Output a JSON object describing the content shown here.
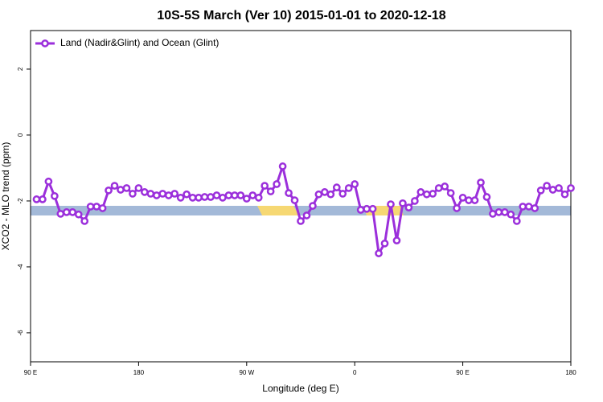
{
  "chart_data": {
    "type": "line",
    "title": "10S-5S March (Ver 10)   2015-01-01 to 2020-12-18",
    "xlabel": "Longitude (deg E)",
    "ylabel": "XCO2 - MLO trend (ppm)",
    "xlim": [
      90,
      540
    ],
    "ylim": [
      -6.88,
      3.17
    ],
    "xticks": [
      {
        "value": 90,
        "label": "90 E"
      },
      180,
      {
        "value": 270,
        "label": "90 W"
      },
      {
        "value": 360,
        "label": "0"
      },
      {
        "value": 450,
        "label": "90 E"
      },
      {
        "value": 540,
        "label": "180"
      }
    ],
    "yticks": [
      2,
      0,
      -2,
      -4,
      -6
    ],
    "legend": "upper left",
    "x": [
      95,
      100,
      105,
      110,
      115,
      120,
      125,
      130,
      135,
      140,
      145,
      150,
      155,
      160,
      165,
      170,
      175,
      180,
      185,
      190,
      195,
      200,
      205,
      210,
      215,
      220,
      225,
      230,
      235,
      240,
      245,
      250,
      255,
      260,
      265,
      270,
      275,
      280,
      285,
      290,
      295,
      300,
      305,
      310,
      315,
      320,
      325,
      330,
      335,
      340,
      345,
      350,
      355,
      360,
      365,
      370,
      375,
      380,
      385,
      390,
      395,
      400,
      405,
      410,
      415,
      420,
      425,
      430,
      435,
      440,
      445,
      450,
      455,
      460,
      465,
      470,
      475,
      480,
      485,
      490,
      495,
      500,
      505,
      510,
      515,
      520,
      525,
      530,
      535,
      540
    ],
    "series": [
      {
        "name": "Land (Nadir&Glint) and Ocean (Glint)",
        "color": "#9b2fdb",
        "values": [
          -1.95,
          -1.95,
          -1.41,
          -1.85,
          -2.39,
          -2.34,
          -2.34,
          -2.41,
          -2.61,
          -2.17,
          -2.17,
          -2.22,
          -1.68,
          -1.54,
          -1.66,
          -1.61,
          -1.78,
          -1.61,
          -1.73,
          -1.78,
          -1.83,
          -1.78,
          -1.83,
          -1.78,
          -1.9,
          -1.8,
          -1.9,
          -1.9,
          -1.88,
          -1.88,
          -1.83,
          -1.9,
          -1.83,
          -1.83,
          -1.83,
          -1.93,
          -1.83,
          -1.9,
          -1.54,
          -1.71,
          -1.49,
          -0.95,
          -1.76,
          -1.98,
          -2.61,
          -2.44,
          -2.15,
          -1.8,
          -1.73,
          -1.8,
          -1.59,
          -1.78,
          -1.61,
          -1.49,
          -2.27,
          -2.24,
          -2.24,
          -3.59,
          -3.29,
          -2.1,
          -3.2,
          -2.07,
          -2.2,
          -2.0,
          -1.73,
          -1.8,
          -1.78,
          -1.61,
          -1.56,
          -1.76,
          -2.22,
          -1.9,
          -1.98,
          -1.98,
          -1.44,
          -1.88,
          -2.39,
          -2.34,
          -2.34,
          -2.41,
          -2.61,
          -2.17,
          -2.17,
          -2.22,
          -1.68,
          -1.54,
          -1.66,
          -1.61,
          -1.8,
          -1.61
        ]
      }
    ]
  }
}
